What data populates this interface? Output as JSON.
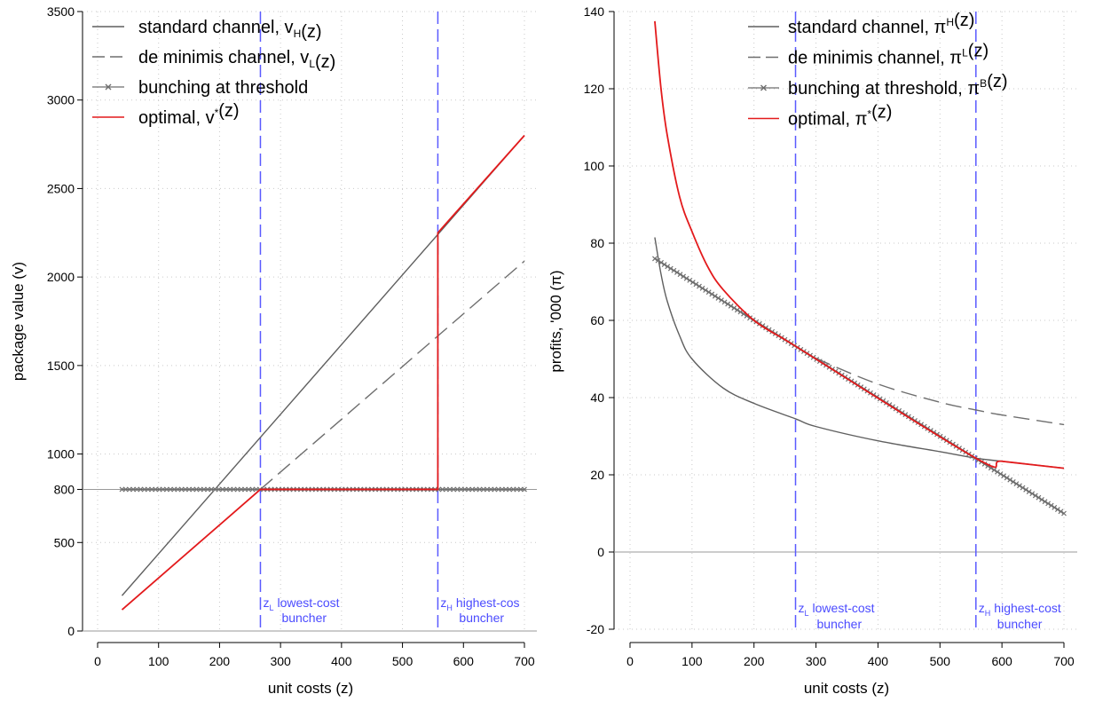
{
  "chart_data": [
    {
      "type": "line",
      "xlabel": "unit costs (z)",
      "ylabel": "package value (v)",
      "xlim": [
        0,
        700
      ],
      "ylim": [
        0,
        3500
      ],
      "xticks": [
        0,
        100,
        200,
        300,
        400,
        500,
        600,
        700
      ],
      "yticks": [
        0,
        500,
        800,
        1000,
        1500,
        2000,
        2500,
        3000,
        3500
      ],
      "grid": true,
      "legend_position": "top-left",
      "series": [
        {
          "name": "standard channel, v_H(z)",
          "style": "solid",
          "color": "#5f5f5f",
          "x": [
            40,
            700
          ],
          "y": [
            200,
            2800
          ]
        },
        {
          "name": "de minimis channel, v_L(z)",
          "style": "dashed",
          "color": "#6e6e6e",
          "x": [
            267,
            700
          ],
          "y": [
            800,
            2090
          ]
        },
        {
          "name": "bunching at threshold",
          "style": "x-markers",
          "color": "#6e6e6e",
          "x": [
            40,
            700
          ],
          "y": [
            800,
            800
          ]
        },
        {
          "name": "optimal, v*(z)",
          "style": "solid",
          "color": "#e31a1c",
          "x": [
            40,
            267,
            558,
            558,
            700
          ],
          "y": [
            120,
            800,
            800,
            2250,
            2800
          ]
        }
      ],
      "vlines": [
        {
          "x": 267,
          "label_sub": "L",
          "label": "lowest-cost",
          "label2": "buncher"
        },
        {
          "x": 558,
          "label_sub": "H",
          "label": "highest-cos",
          "label2": "buncher"
        }
      ],
      "hline": 800
    },
    {
      "type": "line",
      "xlabel": "unit costs (z)",
      "ylabel": "profits, '000 (π)",
      "xlim": [
        0,
        700
      ],
      "ylim": [
        -20,
        140
      ],
      "xticks": [
        0,
        100,
        200,
        300,
        400,
        500,
        600,
        700
      ],
      "yticks": [
        -20,
        0,
        20,
        40,
        60,
        80,
        100,
        120,
        140
      ],
      "grid": true,
      "legend_position": "top-right",
      "series": [
        {
          "name": "standard channel, π^H(z)",
          "style": "solid",
          "color": "#5f5f5f",
          "x": [
            40,
            50,
            60,
            80,
            100,
            150,
            200,
            267,
            300,
            400,
            500,
            558,
            600,
            700
          ],
          "y": [
            81.5,
            72,
            65,
            56,
            50,
            42.5,
            38.5,
            34.5,
            32.5,
            28.8,
            26,
            24.3,
            23.5,
            21.7
          ]
        },
        {
          "name": "de minimis channel, π^L(z)",
          "style": "dashed",
          "color": "#6e6e6e",
          "x": [
            267,
            300,
            400,
            500,
            558,
            600,
            700
          ],
          "y": [
            53.3,
            50.2,
            43.5,
            38.8,
            36.8,
            35.5,
            33
          ]
        },
        {
          "name": "bunching at threshold, π^B(z)",
          "style": "x-markers",
          "color": "#6e6e6e",
          "x": [
            40,
            700
          ],
          "y": [
            76,
            10
          ]
        },
        {
          "name": "optimal, π*(z)",
          "style": "solid",
          "color": "#e31a1c",
          "x": [
            40,
            50,
            60,
            80,
            100,
            125,
            150,
            200,
            250,
            267,
            558,
            600,
            700
          ],
          "y": [
            137.5,
            120,
            108,
            92,
            83,
            74,
            68,
            60,
            55,
            53.3,
            24.3,
            23.5,
            21.7
          ]
        }
      ],
      "vlines": [
        {
          "x": 267,
          "label_sub": "L",
          "label": "lowest-cost",
          "label2": "buncher"
        },
        {
          "x": 558,
          "label_sub": "H",
          "label": "highest-cost",
          "label2": "buncher"
        }
      ],
      "hline": 0
    }
  ]
}
